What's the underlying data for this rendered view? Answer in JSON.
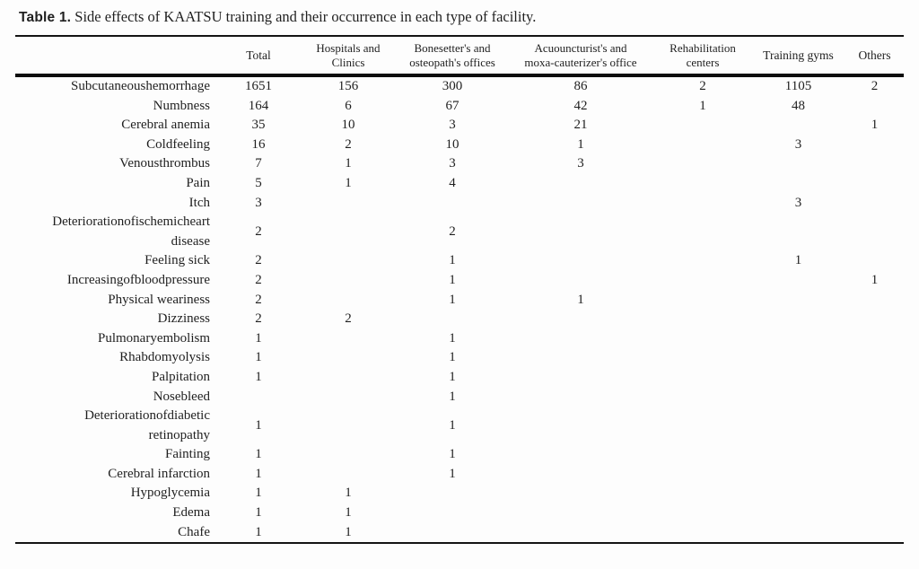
{
  "caption": {
    "label": "Table 1.",
    "text": " Side effects of KAATSU training and their occurrence in each type of facility."
  },
  "table": {
    "columns": [
      "",
      "Total",
      "Hospitals and\nClinics",
      "Bonesetter's and\nosteopath's offices",
      "Acuouncturist's and\nmoxa-cauterizer's office",
      "Rehabilitation\ncenters",
      "Training gyms",
      "Others"
    ],
    "rows": [
      {
        "label": "Subcutaneoushemorrhage",
        "values": [
          "1651",
          "156",
          "300",
          "86",
          "2",
          "1105",
          "2"
        ]
      },
      {
        "label": "Numbness",
        "values": [
          "164",
          "6",
          "67",
          "42",
          "1",
          "48",
          ""
        ]
      },
      {
        "label": "Cerebral anemia",
        "values": [
          "35",
          "10",
          "3",
          "21",
          "",
          "",
          "1"
        ]
      },
      {
        "label": "Coldfeeling",
        "values": [
          "16",
          "2",
          "10",
          "1",
          "",
          "3",
          ""
        ]
      },
      {
        "label": "Venousthrombus",
        "values": [
          "7",
          "1",
          "3",
          "3",
          "",
          "",
          ""
        ]
      },
      {
        "label": "Pain",
        "values": [
          "5",
          "1",
          "4",
          "",
          "",
          "",
          ""
        ]
      },
      {
        "label": "Itch",
        "values": [
          "3",
          "",
          "",
          "",
          "",
          "3",
          ""
        ]
      },
      {
        "label": "Deteriorationofischemicheart\ndisease",
        "values": [
          "2",
          "",
          "2",
          "",
          "",
          "",
          ""
        ]
      },
      {
        "label": "Feeling sick",
        "values": [
          "2",
          "",
          "1",
          "",
          "",
          "1",
          ""
        ]
      },
      {
        "label": "Increasingofbloodpressure",
        "values": [
          "2",
          "",
          "1",
          "",
          "",
          "",
          "1"
        ]
      },
      {
        "label": "Physical weariness",
        "values": [
          "2",
          "",
          "1",
          "1",
          "",
          "",
          ""
        ]
      },
      {
        "label": "Dizziness",
        "values": [
          "2",
          "2",
          "",
          "",
          "",
          "",
          ""
        ]
      },
      {
        "label": "Pulmonaryembolism",
        "values": [
          "1",
          "",
          "1",
          "",
          "",
          "",
          ""
        ]
      },
      {
        "label": "Rhabdomyolysis",
        "values": [
          "1",
          "",
          "1",
          "",
          "",
          "",
          ""
        ]
      },
      {
        "label": "Palpitation",
        "values": [
          "1",
          "",
          "1",
          "",
          "",
          "",
          ""
        ]
      },
      {
        "label": "Nosebleed",
        "values": [
          "",
          "",
          "1",
          "",
          "",
          "",
          ""
        ]
      },
      {
        "label": "Deteriorationofdiabetic\nretinopathy",
        "values": [
          "1",
          "",
          "1",
          "",
          "",
          "",
          ""
        ]
      },
      {
        "label": "Fainting",
        "values": [
          "1",
          "",
          "1",
          "",
          "",
          "",
          ""
        ]
      },
      {
        "label": "Cerebral infarction",
        "values": [
          "1",
          "",
          "1",
          "",
          "",
          "",
          ""
        ]
      },
      {
        "label": "Hypoglycemia",
        "values": [
          "1",
          "1",
          "",
          "",
          "",
          "",
          ""
        ]
      },
      {
        "label": "Edema",
        "values": [
          "1",
          "1",
          "",
          "",
          "",
          "",
          ""
        ]
      },
      {
        "label": "Chafe",
        "values": [
          "1",
          "1",
          "",
          "",
          "",
          "",
          ""
        ]
      }
    ]
  }
}
